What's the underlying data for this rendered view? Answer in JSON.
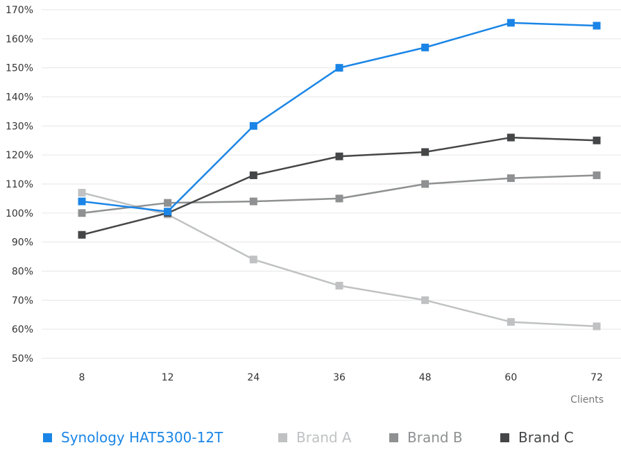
{
  "chart_data": {
    "type": "line",
    "x": [
      "8",
      "12",
      "24",
      "36",
      "48",
      "60",
      "72"
    ],
    "xlabel": "Clients",
    "ylabel": "",
    "ylim": [
      50,
      170
    ],
    "yticks": [
      {
        "value": 170,
        "label": "170%"
      },
      {
        "value": 160,
        "label": "160%"
      },
      {
        "value": 150,
        "label": "150%"
      },
      {
        "value": 140,
        "label": "140%"
      },
      {
        "value": 130,
        "label": "130%"
      },
      {
        "value": 120,
        "label": "120%"
      },
      {
        "value": 110,
        "label": "110%"
      },
      {
        "value": 100,
        "label": "100%"
      },
      {
        "value": 90,
        "label": "90%"
      },
      {
        "value": 80,
        "label": "80%"
      },
      {
        "value": 70,
        "label": "70%"
      },
      {
        "value": 60,
        "label": "60%"
      },
      {
        "value": 50,
        "label": "50%"
      }
    ],
    "grid": "horizontal",
    "legend_position": "bottom",
    "series": [
      {
        "name": "Synology HAT5300-12T",
        "color": "#1a85e6",
        "values": [
          104,
          100.5,
          130,
          150,
          157,
          165.5,
          164.5
        ]
      },
      {
        "name": "Brand A",
        "color": "#bfc1c2",
        "values": [
          107,
          99.5,
          84,
          75,
          70,
          62.5,
          61
        ]
      },
      {
        "name": "Brand B",
        "color": "#8e9091",
        "values": [
          100,
          103.5,
          104,
          105,
          110,
          112,
          113
        ]
      },
      {
        "name": "Brand C",
        "color": "#454647",
        "values": [
          92.5,
          100,
          113,
          119.5,
          121,
          126,
          125
        ]
      }
    ]
  }
}
